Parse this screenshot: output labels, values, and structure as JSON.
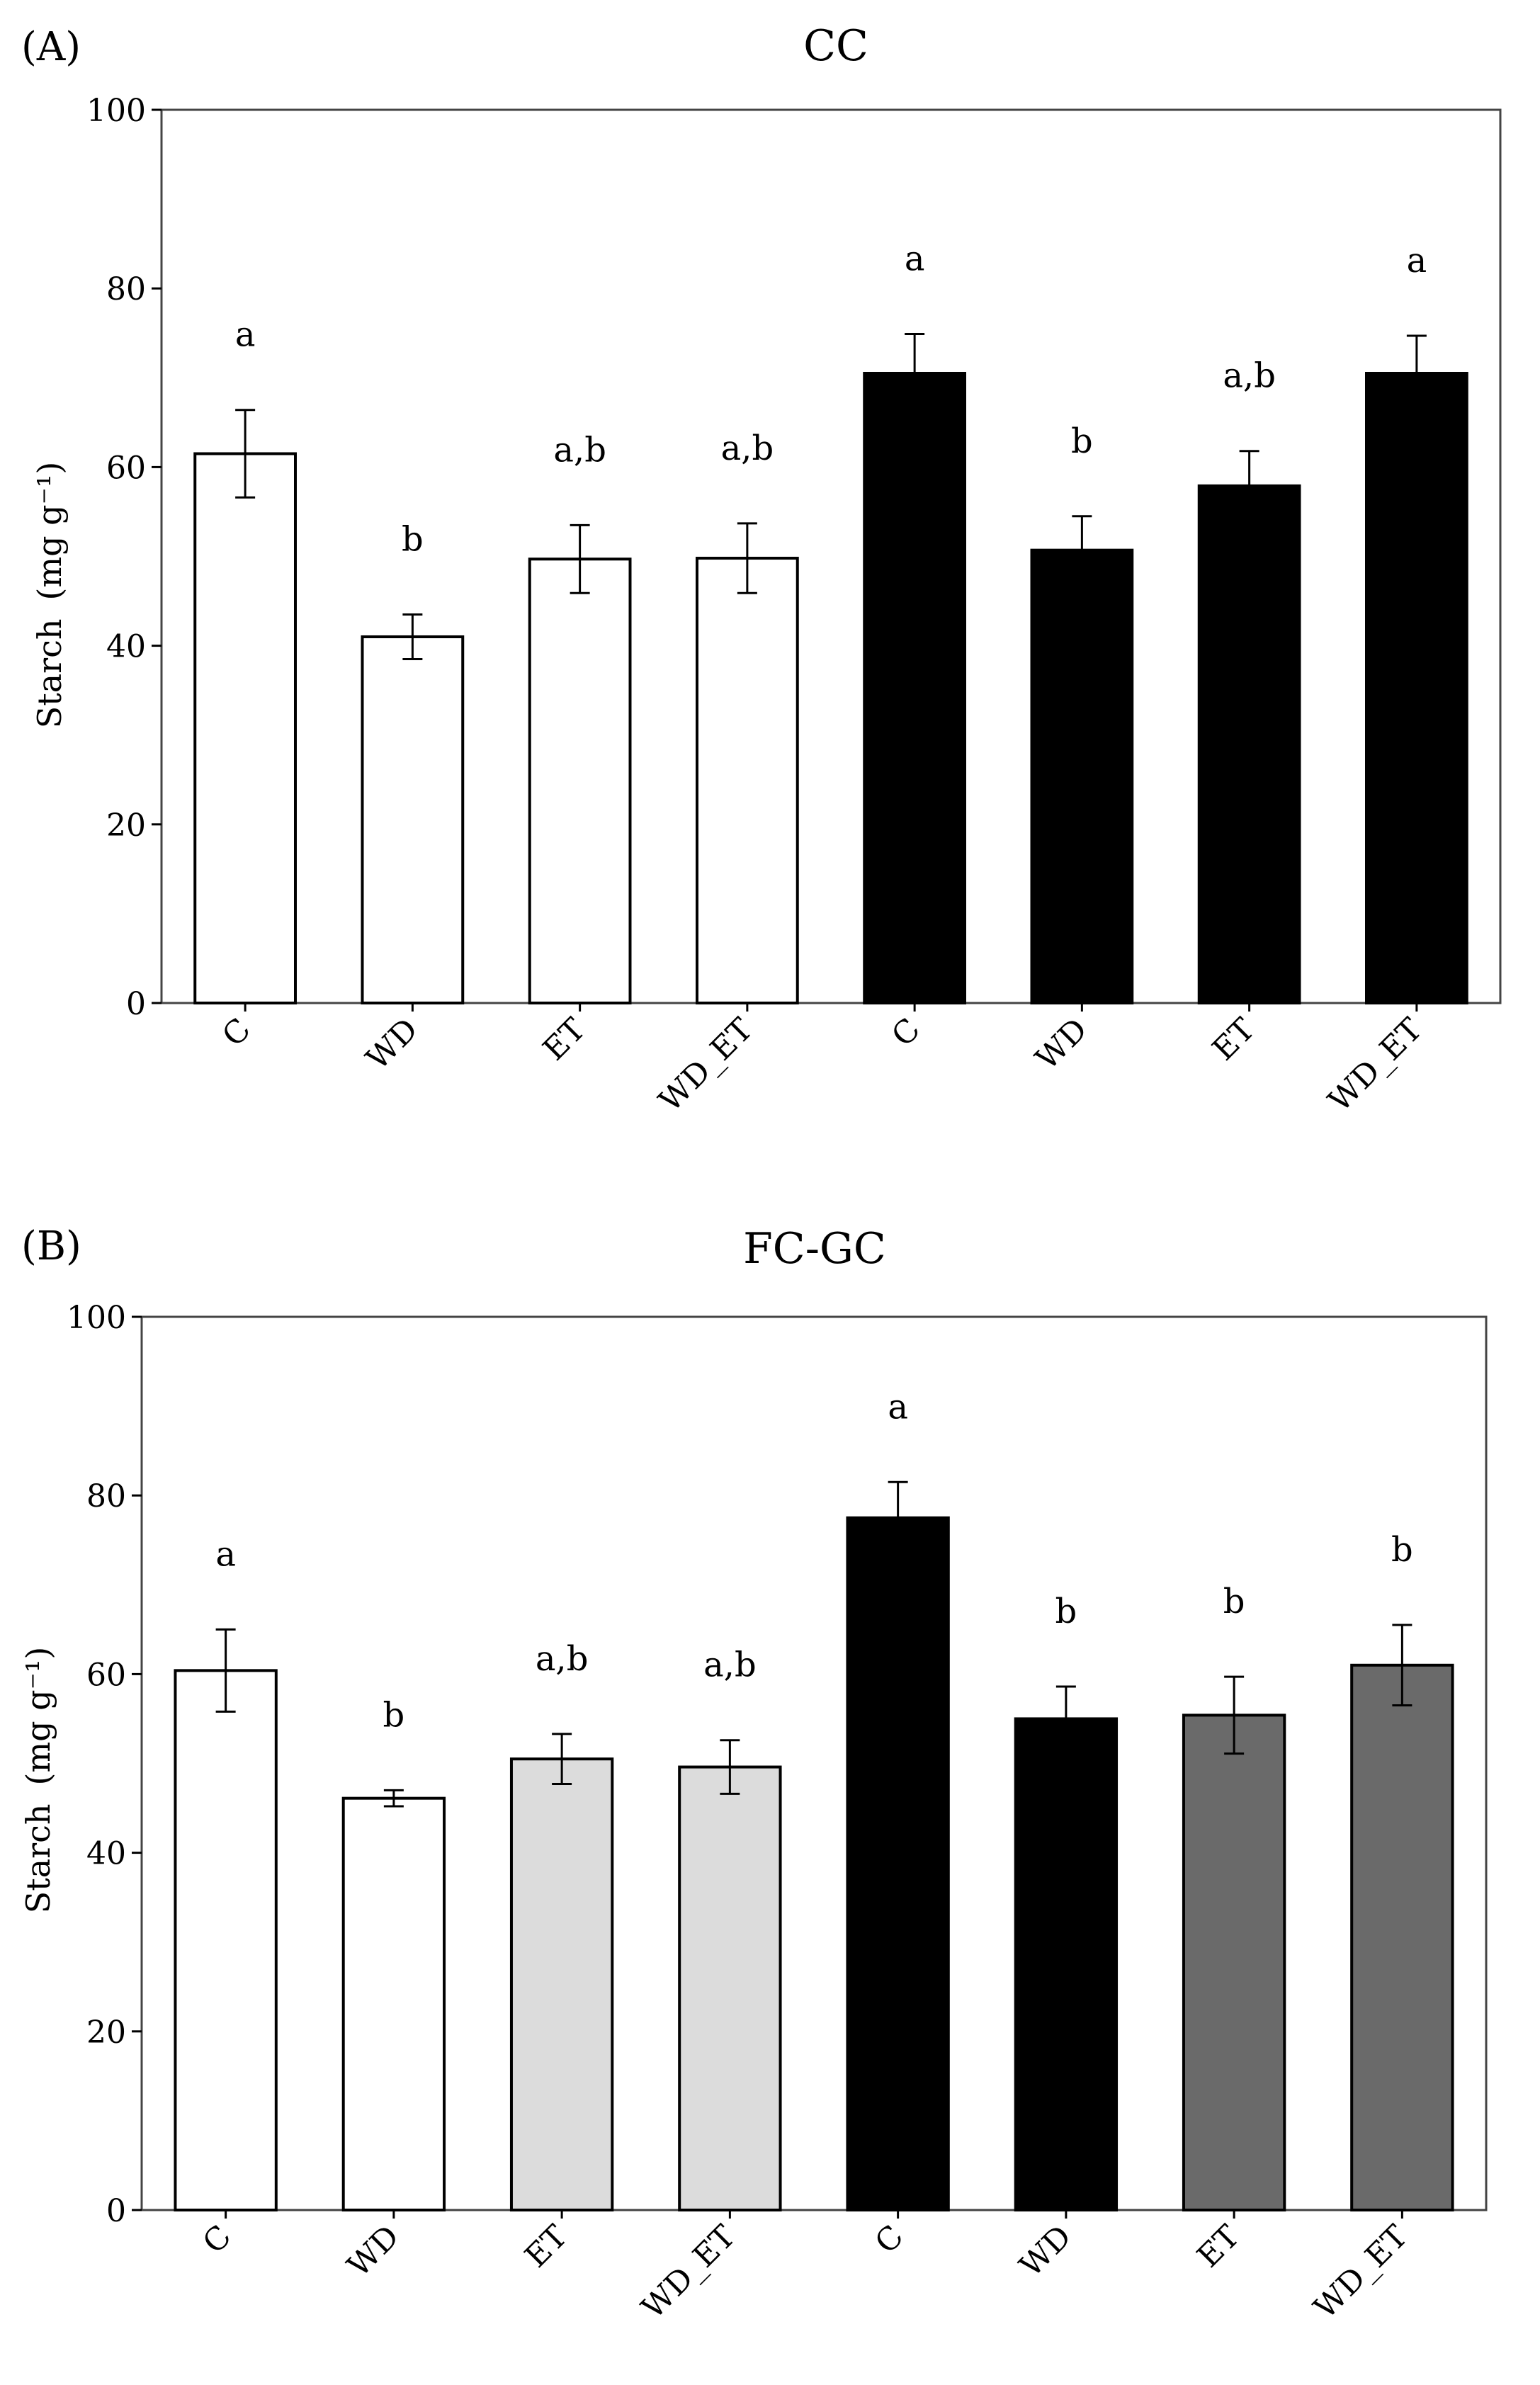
{
  "chart_data": [
    {
      "type": "bar",
      "panel_label": "(A)",
      "title": "CC",
      "xlabel": "",
      "ylabel": "Starch",
      "ylabel_unit": "(mg g⁻¹)",
      "ylim": [
        0,
        100
      ],
      "yticks": [
        "0",
        "20",
        "40",
        "60",
        "80",
        "100"
      ],
      "categories": [
        "C",
        "WD",
        "ET",
        "WD_ET",
        "C",
        "WD",
        "ET",
        "WD_ET"
      ],
      "values": [
        61.5,
        41.0,
        49.7,
        49.8,
        70.5,
        50.7,
        57.9,
        70.5
      ],
      "errors": [
        4.9,
        2.5,
        3.8,
        3.9,
        4.4,
        3.8,
        3.9,
        4.2
      ],
      "letters": [
        "a",
        "b",
        "a,b",
        "a,b",
        "a",
        "b",
        "a,b",
        "a"
      ],
      "colors": [
        "#ffffff",
        "#ffffff",
        "#ffffff",
        "#ffffff",
        "#000000",
        "#000000",
        "#000000",
        "#000000"
      ]
    },
    {
      "type": "bar",
      "panel_label": "(B)",
      "title": "FC-GC",
      "xlabel": "",
      "ylabel": "Starch",
      "ylabel_unit": "(mg g⁻¹)",
      "ylim": [
        0,
        100
      ],
      "yticks": [
        "0",
        "20",
        "40",
        "60",
        "80",
        "100"
      ],
      "categories": [
        "C",
        "WD",
        "ET",
        "WD_ET",
        "C",
        "WD",
        "ET",
        "WD_ET"
      ],
      "values": [
        60.4,
        46.1,
        50.5,
        49.6,
        77.5,
        55.0,
        55.4,
        61.0
      ],
      "errors": [
        4.6,
        0.9,
        2.8,
        3.0,
        4.0,
        3.6,
        4.3,
        4.5
      ],
      "letters": [
        "a",
        "b",
        "a,b",
        "a,b",
        "a",
        "b",
        "b",
        "b"
      ],
      "colors": [
        "#ffffff",
        "#ffffff",
        "#dcdcdc",
        "#dcdcdc",
        "#000000",
        "#000000",
        "#6a6a6a",
        "#6a6a6a"
      ]
    }
  ]
}
